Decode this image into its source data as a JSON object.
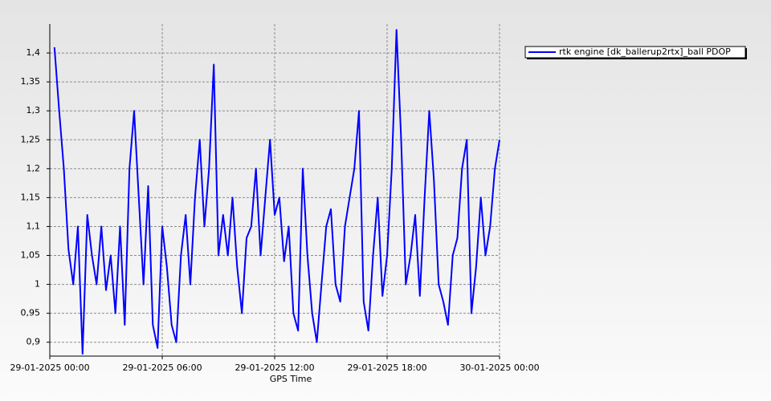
{
  "chart_data": {
    "type": "line",
    "x_label": "GPS Time",
    "xlim": [
      "2025-01-29T00:00",
      "2025-01-30T00:00"
    ],
    "xticks": [
      {
        "value": "2025-01-29T00:00",
        "label": "29-01-2025 00:00"
      },
      {
        "value": "2025-01-29T06:00",
        "label": "29-01-2025 06:00"
      },
      {
        "value": "2025-01-29T12:00",
        "label": "29-01-2025 12:00"
      },
      {
        "value": "2025-01-29T18:00",
        "label": "29-01-2025 18:00"
      },
      {
        "value": "2025-01-30T00:00",
        "label": "30-01-2025 00:00"
      }
    ],
    "ylim": [
      0.876,
      1.45
    ],
    "yticks": [
      {
        "value": 0.9,
        "label": "0,9"
      },
      {
        "value": 0.95,
        "label": "0,95"
      },
      1,
      {
        "value": 1.05,
        "label": "1,05"
      },
      {
        "value": 1.1,
        "label": "1,1"
      },
      {
        "value": 1.15,
        "label": "1,15"
      },
      {
        "value": 1.2,
        "label": "1,2"
      },
      {
        "value": 1.25,
        "label": "1,25"
      },
      {
        "value": 1.3,
        "label": "1,3"
      },
      {
        "value": 1.35,
        "label": "1,35"
      },
      {
        "value": 1.4,
        "label": "1,4"
      }
    ],
    "grid": true,
    "legend": "top-right",
    "x": [
      "2025-01-29T00:15",
      "2025-01-29T00:30",
      "2025-01-29T00:45",
      "2025-01-29T01:00",
      "2025-01-29T01:15",
      "2025-01-29T01:30",
      "2025-01-29T01:45",
      "2025-01-29T02:00",
      "2025-01-29T02:15",
      "2025-01-29T02:30",
      "2025-01-29T02:45",
      "2025-01-29T03:00",
      "2025-01-29T03:15",
      "2025-01-29T03:30",
      "2025-01-29T03:45",
      "2025-01-29T04:00",
      "2025-01-29T04:15",
      "2025-01-29T04:30",
      "2025-01-29T04:45",
      "2025-01-29T05:00",
      "2025-01-29T05:15",
      "2025-01-29T05:30",
      "2025-01-29T05:45",
      "2025-01-29T06:00",
      "2025-01-29T06:15",
      "2025-01-29T06:30",
      "2025-01-29T06:45",
      "2025-01-29T07:00",
      "2025-01-29T07:15",
      "2025-01-29T07:30",
      "2025-01-29T07:45",
      "2025-01-29T08:00",
      "2025-01-29T08:15",
      "2025-01-29T08:30",
      "2025-01-29T08:45",
      "2025-01-29T09:00",
      "2025-01-29T09:15",
      "2025-01-29T09:30",
      "2025-01-29T09:45",
      "2025-01-29T10:00",
      "2025-01-29T10:15",
      "2025-01-29T10:30",
      "2025-01-29T10:45",
      "2025-01-29T11:00",
      "2025-01-29T11:15",
      "2025-01-29T11:30",
      "2025-01-29T11:45",
      "2025-01-29T12:00",
      "2025-01-29T12:15",
      "2025-01-29T12:30",
      "2025-01-29T12:45",
      "2025-01-29T13:00",
      "2025-01-29T13:15",
      "2025-01-29T13:30",
      "2025-01-29T13:45",
      "2025-01-29T14:00",
      "2025-01-29T14:15",
      "2025-01-29T14:30",
      "2025-01-29T14:45",
      "2025-01-29T15:00",
      "2025-01-29T15:15",
      "2025-01-29T15:30",
      "2025-01-29T15:45",
      "2025-01-29T16:00",
      "2025-01-29T16:15",
      "2025-01-29T16:30",
      "2025-01-29T16:45",
      "2025-01-29T17:00",
      "2025-01-29T17:15",
      "2025-01-29T17:30",
      "2025-01-29T17:45",
      "2025-01-29T18:00",
      "2025-01-29T18:15",
      "2025-01-29T18:30",
      "2025-01-29T18:45",
      "2025-01-29T19:00",
      "2025-01-29T19:15",
      "2025-01-29T19:30",
      "2025-01-29T19:45",
      "2025-01-29T20:00",
      "2025-01-29T20:15",
      "2025-01-29T20:30",
      "2025-01-29T20:45",
      "2025-01-29T21:00",
      "2025-01-29T21:15",
      "2025-01-29T21:30",
      "2025-01-29T21:45",
      "2025-01-29T22:00",
      "2025-01-29T22:15",
      "2025-01-29T22:30",
      "2025-01-29T22:45",
      "2025-01-29T23:00",
      "2025-01-29T23:15",
      "2025-01-29T23:30",
      "2025-01-29T23:45",
      "2025-01-30T00:00"
    ],
    "series": [
      {
        "name": "rtk engine [dk_ballerup2rtx]_ball PDOP",
        "color": "#0000ff",
        "values": [
          1.41,
          1.3,
          1.2,
          1.06,
          1.0,
          1.1,
          0.88,
          1.12,
          1.05,
          1.0,
          1.1,
          0.99,
          1.05,
          0.95,
          1.1,
          0.93,
          1.2,
          1.3,
          1.15,
          1.0,
          1.17,
          0.93,
          0.89,
          1.1,
          1.03,
          0.93,
          0.9,
          1.05,
          1.12,
          1.0,
          1.15,
          1.25,
          1.1,
          1.2,
          1.38,
          1.05,
          1.12,
          1.05,
          1.15,
          1.03,
          0.95,
          1.08,
          1.1,
          1.2,
          1.05,
          1.15,
          1.25,
          1.12,
          1.15,
          1.04,
          1.1,
          0.95,
          0.92,
          1.2,
          1.05,
          0.95,
          0.9,
          1.0,
          1.1,
          1.13,
          1.0,
          0.97,
          1.1,
          1.15,
          1.2,
          1.3,
          0.97,
          0.92,
          1.05,
          1.15,
          0.98,
          1.05,
          1.2,
          1.44,
          1.25,
          1.0,
          1.05,
          1.12,
          0.98,
          1.15,
          1.3,
          1.18,
          1.0,
          0.97,
          0.93,
          1.05,
          1.08,
          1.2,
          1.25,
          0.95,
          1.03,
          1.15,
          1.05,
          1.1,
          1.2,
          1.25
        ]
      }
    ]
  }
}
